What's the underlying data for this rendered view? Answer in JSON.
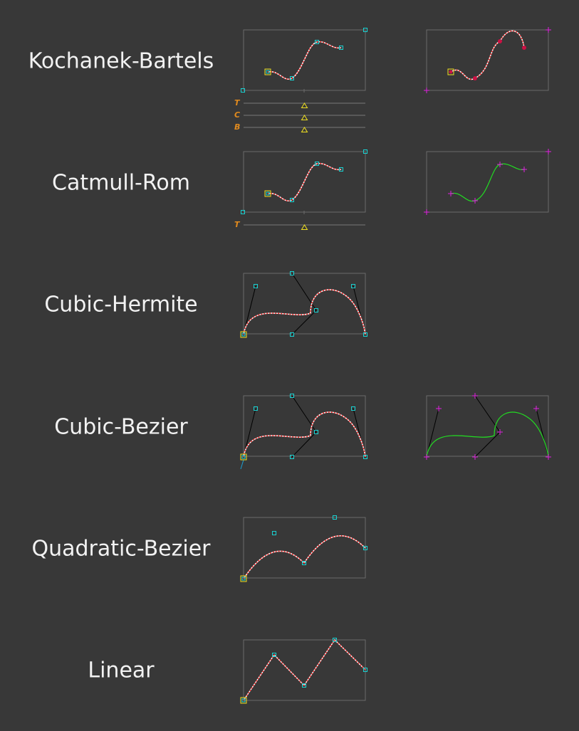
{
  "colors": {
    "background": "#383838",
    "label": "#f2f2f2",
    "frame": "#6a6a6a",
    "curve_dotted": "#ff2a2a",
    "curve_dot_bg": "#ffffff",
    "curve_solid": "#22dd22",
    "control_point": "#19d3d3",
    "selected_point": "#f0e020",
    "cross_point": "#e020e0",
    "tangent_line": "#000000",
    "slider_letter": "#e08a1e",
    "slider_line": "#777777",
    "slider_knob": "#f0e020",
    "red_point": "#cc1144"
  },
  "icons": {
    "control_point": "square-handle-icon",
    "selected_point": "selected-square-handle-icon",
    "cross_point": "plus-marker-icon",
    "slider_knob": "triangle-knob-icon"
  },
  "rows": [
    {
      "id": "kochanek-bartels",
      "label": "Kochanek-Bartels",
      "sliders": [
        "T",
        "C",
        "B"
      ]
    },
    {
      "id": "catmull-rom",
      "label": "Catmull-Rom",
      "sliders": [
        "T"
      ]
    },
    {
      "id": "cubic-hermite",
      "label": "Cubic-Hermite",
      "sliders": []
    },
    {
      "id": "cubic-bezier",
      "label": "Cubic-Bezier",
      "sliders": []
    },
    {
      "id": "quadratic-bezier",
      "label": "Quadratic-Bezier",
      "sliders": []
    },
    {
      "id": "linear",
      "label": "Linear",
      "sliders": []
    }
  ]
}
